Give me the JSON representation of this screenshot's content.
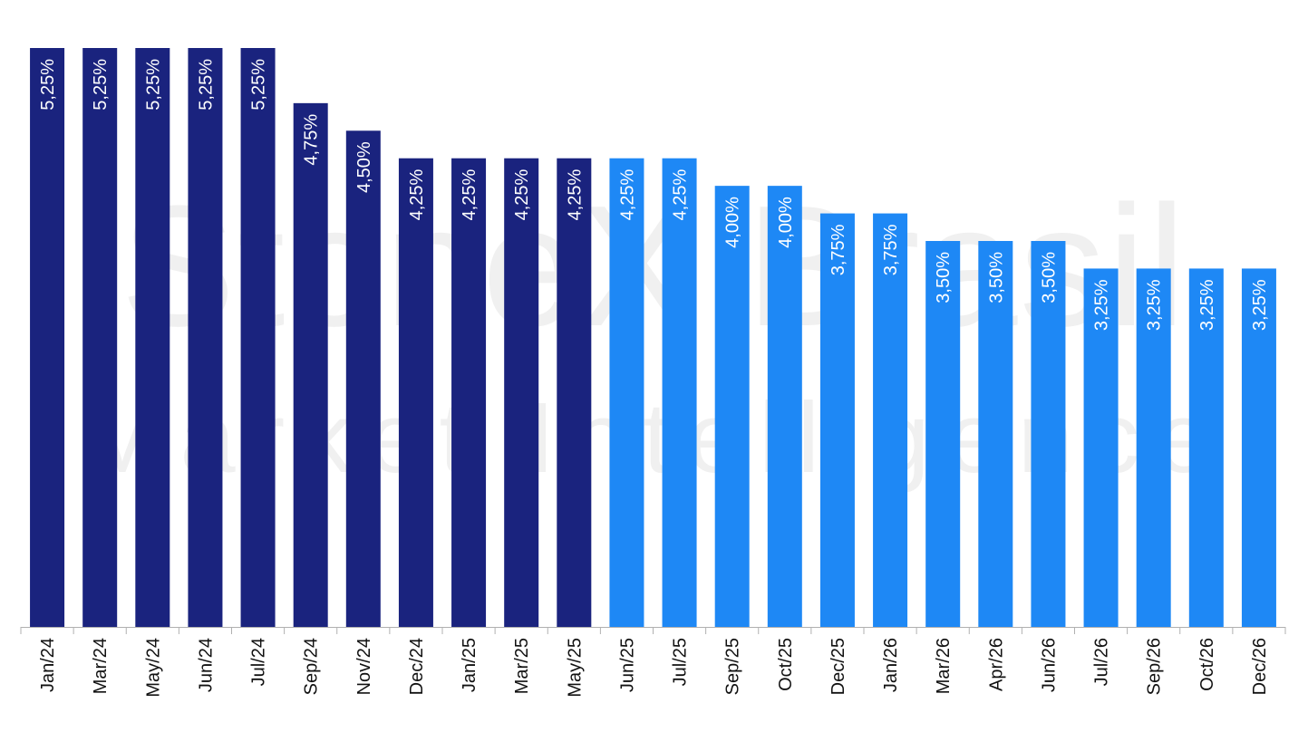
{
  "watermark": {
    "line1": "StoneX Brasil",
    "line2": "Market Intelligence"
  },
  "colors": {
    "history": "#1a237e",
    "forecast": "#1e88f5",
    "axis": "#b0b0b0",
    "label_inside": "#ffffff",
    "tick": "#111111"
  },
  "chart_data": {
    "type": "bar",
    "title": "",
    "xlabel": "",
    "ylabel": "",
    "ylim": [
      0,
      5.25
    ],
    "grid": false,
    "legend": "none",
    "categories": [
      "Jan/24",
      "Mar/24",
      "May/24",
      "Jun/24",
      "Jul/24",
      "Sep/24",
      "Nov/24",
      "Dec/24",
      "Jan/25",
      "Mar/25",
      "May/25",
      "Jun/25",
      "Jul/25",
      "Sep/25",
      "Oct/25",
      "Dec/25",
      "Jan/26",
      "Mar/26",
      "Apr/26",
      "Jun/26",
      "Jul/26",
      "Sep/26",
      "Oct/26",
      "Dec/26"
    ],
    "values": [
      5.25,
      5.25,
      5.25,
      5.25,
      5.25,
      4.75,
      4.5,
      4.25,
      4.25,
      4.25,
      4.25,
      4.25,
      4.25,
      4.0,
      4.0,
      3.75,
      3.75,
      3.5,
      3.5,
      3.5,
      3.25,
      3.25,
      3.25,
      3.25
    ],
    "data_labels": [
      "5,25%",
      "5,25%",
      "5,25%",
      "5,25%",
      "5,25%",
      "4,75%",
      "4,50%",
      "4,25%",
      "4,25%",
      "4,25%",
      "4,25%",
      "4,25%",
      "4,25%",
      "4,00%",
      "4,00%",
      "3,75%",
      "3,75%",
      "3,50%",
      "3,50%",
      "3,50%",
      "3,25%",
      "3,25%",
      "3,25%",
      "3,25%"
    ],
    "bar_color_group": [
      "history",
      "history",
      "history",
      "history",
      "history",
      "history",
      "history",
      "history",
      "history",
      "history",
      "history",
      "forecast",
      "forecast",
      "forecast",
      "forecast",
      "forecast",
      "forecast",
      "forecast",
      "forecast",
      "forecast",
      "forecast",
      "forecast",
      "forecast",
      "forecast"
    ]
  }
}
